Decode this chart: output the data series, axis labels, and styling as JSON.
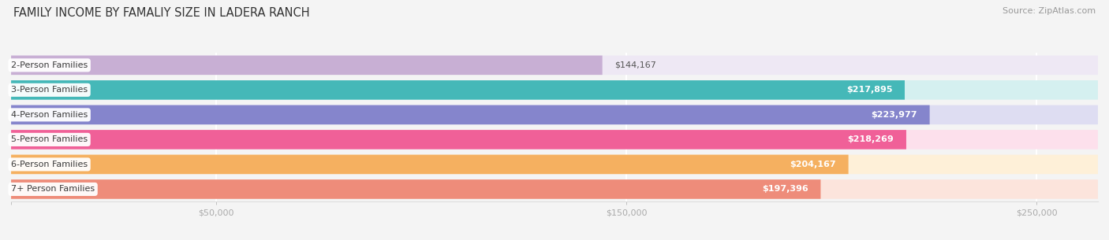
{
  "title": "FAMILY INCOME BY FAMALIY SIZE IN LADERA RANCH",
  "source": "Source: ZipAtlas.com",
  "categories": [
    "2-Person Families",
    "3-Person Families",
    "4-Person Families",
    "5-Person Families",
    "6-Person Families",
    "7+ Person Families"
  ],
  "values": [
    144167,
    217895,
    223977,
    218269,
    204167,
    197396
  ],
  "value_labels": [
    "$144,167",
    "$217,895",
    "$223,977",
    "$218,269",
    "$204,167",
    "$197,396"
  ],
  "bar_colors": [
    "#c8afd4",
    "#45b8b8",
    "#8585cc",
    "#f06098",
    "#f5b060",
    "#ee8c7a"
  ],
  "bar_bg_colors": [
    "#eee8f4",
    "#d5f0f0",
    "#deddf2",
    "#fde0ec",
    "#fef0d8",
    "#fce4dc"
  ],
  "value_text_colors": [
    "#555555",
    "#ffffff",
    "#ffffff",
    "#ffffff",
    "#ffffff",
    "#ffffff"
  ],
  "xmax": 265000,
  "xtick_vals": [
    0,
    50000,
    150000,
    250000
  ],
  "xtick_labels": [
    "",
    "$50,000",
    "$150,000",
    "$250,000"
  ],
  "background_color": "#f4f4f4",
  "grid_color": "#ffffff",
  "title_fontsize": 10.5,
  "source_fontsize": 8,
  "label_fontsize": 8,
  "value_fontsize": 8
}
